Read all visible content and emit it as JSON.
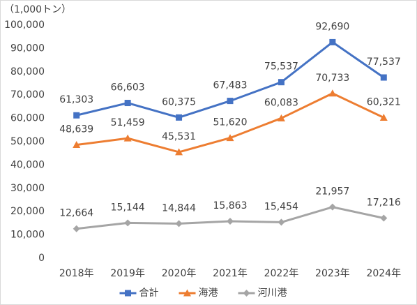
{
  "chart_data": {
    "type": "line",
    "y_label": "（1,000トン）",
    "categories": [
      "2018年",
      "2019年",
      "2020年",
      "2021年",
      "2022年",
      "2023年",
      "2024年"
    ],
    "series": [
      {
        "name": "合計",
        "color": "#4472c4",
        "marker": "square",
        "values": [
          61303,
          66603,
          60375,
          67483,
          75537,
          92690,
          77537
        ],
        "value_labels": [
          "61,303",
          "66,603",
          "60,375",
          "67,483",
          "75,537",
          "92,690",
          "77,537"
        ]
      },
      {
        "name": "海港",
        "color": "#ed7d31",
        "marker": "triangle",
        "values": [
          48639,
          51459,
          45531,
          51620,
          60083,
          70733,
          60321
        ],
        "value_labels": [
          "48,639",
          "51,459",
          "45,531",
          "51,620",
          "60,083",
          "70,733",
          "60,321"
        ]
      },
      {
        "name": "河川港",
        "color": "#a5a5a5",
        "marker": "diamond",
        "values": [
          12664,
          15144,
          14844,
          15863,
          15454,
          21957,
          17216
        ],
        "value_labels": [
          "12,664",
          "15,144",
          "14,844",
          "15,863",
          "15,454",
          "21,957",
          "17,216"
        ]
      }
    ],
    "ylim": [
      0,
      100000
    ],
    "yticks": [
      {
        "value": 0,
        "label": "0"
      },
      {
        "value": 10000,
        "label": "10,000"
      },
      {
        "value": 20000,
        "label": "20,000"
      },
      {
        "value": 30000,
        "label": "30,000"
      },
      {
        "value": 40000,
        "label": "40,000"
      },
      {
        "value": 50000,
        "label": "50,000"
      },
      {
        "value": 60000,
        "label": "60,000"
      },
      {
        "value": 70000,
        "label": "70,000"
      },
      {
        "value": 80000,
        "label": "80,000"
      },
      {
        "value": 90000,
        "label": "90,000"
      },
      {
        "value": 100000,
        "label": "100,000"
      }
    ],
    "grid": false,
    "legend": "bottom"
  }
}
